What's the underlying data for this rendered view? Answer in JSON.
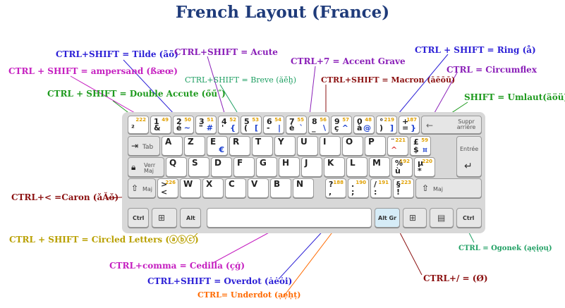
{
  "title": "French Layout (France)",
  "colors": {
    "title": "#1f3b7a",
    "blue": "#2b1fd6",
    "purple": "#8a1fb8",
    "magenta": "#c51fc0",
    "green": "#1e9a1e",
    "teal": "#21a064",
    "maroon": "#8b1010",
    "olive": "#b9a000",
    "orange": "#ff6a00"
  },
  "labels": {
    "tilde": "CTRL+SHIFT = Tilde (ãõ)",
    "acute": "CTRL+SHIFT = Acute",
    "accent_grave": "CTRL+7  = Accent Grave",
    "ring": "CTRL + SHIFT = Ring (å)",
    "ampersand": "CTRL + SHIFT = ampersand (ßæœ)",
    "breve": "CTRL+SHIFT = Breve (ăĕḫ)",
    "macron": "CTRL+SHIFT = Macron (āēōū)",
    "circumflex": "CTRL = Circumflex",
    "double_accute": "CTRL + SHIFT = Double Accute (őű˝)",
    "umlaut": "SHIFT = Umlaut(äöü)",
    "caron": "CTRL+< =Caron (ǎǍǒ)",
    "circled": "CTRL + SHIFT = Circled Letters (ⓐⓑⓒ)",
    "ogonek": "CTRL = Ogonek (ąęįǫų)",
    "cedilla": "CTRL+comma =  Cedilla (çģ)",
    "slash": "CTRL+/ = (Ø)",
    "overdot": "CTRL+SHIFT = Overdot (ȧėȯi)",
    "underdot": "CTRL= Underdot (ạẹḥṭ)"
  },
  "keyboard": {
    "row1": [
      {
        "main": "²",
        "num": "222"
      },
      {
        "top": "1",
        "main": "&",
        "num": "49"
      },
      {
        "top": "2",
        "main": "é",
        "alt": "~",
        "num": "50"
      },
      {
        "top": "3",
        "main": "\"",
        "alt": "#",
        "num": "51"
      },
      {
        "top": "4",
        "main": "'",
        "alt": "{",
        "num": "52"
      },
      {
        "top": "5",
        "main": "(",
        "alt": "[",
        "num": "53"
      },
      {
        "top": "6",
        "main": "-",
        "alt": "|",
        "num": "54"
      },
      {
        "top": "7",
        "main": "è",
        "alt": "`",
        "num": "55"
      },
      {
        "top": "8",
        "main": "_",
        "alt": "\\",
        "num": "56"
      },
      {
        "top": "9",
        "main": "ç",
        "alt": "^",
        "num": "57"
      },
      {
        "top": "0",
        "main": "à",
        "alt": "@",
        "num": "48"
      },
      {
        "top": "°",
        "main": ")",
        "alt": "]",
        "num": "219"
      },
      {
        "top": "+",
        "main": "=",
        "alt": "}",
        "num": "187"
      }
    ],
    "backspace": "Suppr arrière",
    "tab": "Tab",
    "row2": [
      "A",
      "Z",
      "E",
      "R",
      "T",
      "Y",
      "U",
      "I",
      "O",
      "P"
    ],
    "row2_alt_e": "€",
    "row2_extra1": {
      "top": "¨",
      "main": "^",
      "num": "221"
    },
    "row2_extra2": {
      "top": "£",
      "main": "$",
      "alt": "¤",
      "num": "59"
    },
    "enter": "Entrée",
    "caps": "Verr Maj",
    "row3": [
      "Q",
      "S",
      "D",
      "F",
      "G",
      "H",
      "J",
      "K",
      "L",
      "M"
    ],
    "row3_extra1": {
      "top": "%",
      "main": "ù",
      "num": "192"
    },
    "row3_extra2": {
      "top": "µ",
      "main": "*",
      "num": "220"
    },
    "shift_left": "Maj",
    "lt_key": {
      "top": ">",
      "main": "<",
      "num": "226"
    },
    "row4": [
      "W",
      "X",
      "C",
      "V",
      "B",
      "N"
    ],
    "row4_extra1": {
      "top": "?",
      "main": ",",
      "num": "188"
    },
    "row4_extra2": {
      "top": ".",
      "main": ";",
      "num": "190"
    },
    "row4_extra3": {
      "top": "/",
      "main": ":",
      "num": "191"
    },
    "row4_extra4": {
      "top": "§",
      "main": "!",
      "num": "223"
    },
    "shift_right": "Maj",
    "ctrl": "Ctrl",
    "alt": "Alt",
    "altgr": "Alt Gr",
    "ctrl_right": "Ctrl"
  }
}
